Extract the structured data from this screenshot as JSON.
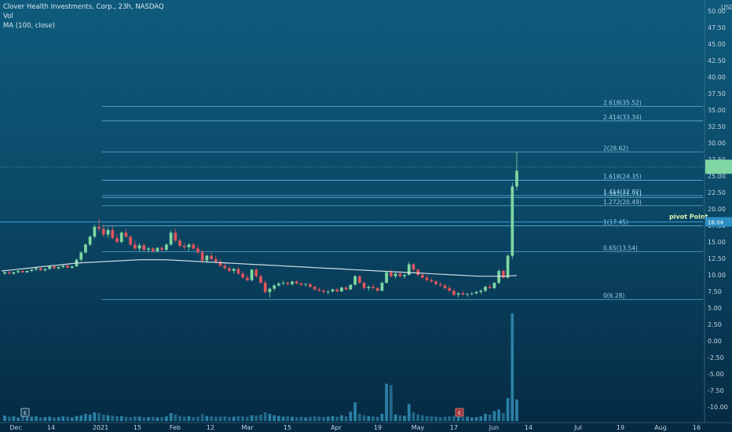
{
  "legend": {
    "title": "Clover Health Investments, Corp., 23h, NASDAQ",
    "vol": "Vol",
    "ma": "MA (100, close)"
  },
  "currency": "USD",
  "colors": {
    "up": "#7fd6a2",
    "down": "#e0545c",
    "ma": "#e6eef2",
    "fib": "#6cc4ee",
    "volume": "#2f89b0",
    "pivot_line": "#3aa8e0"
  },
  "chart_data": {
    "type": "candlestick",
    "title": "Clover Health Investments, Corp., 23h, NASDAQ",
    "y_axis": {
      "ticks": [
        "50.00",
        "47.50",
        "45.00",
        "42.50",
        "40.00",
        "37.50",
        "35.00",
        "32.50",
        "30.00",
        "27.50",
        "25.00",
        "22.50",
        "20.00",
        "17.50",
        "15.00",
        "12.50",
        "10.00",
        "7.50",
        "5.00",
        "2.50",
        "0.00",
        "-2.50",
        "-5.00",
        "-7.50",
        "-10.00"
      ],
      "ylim": [
        -12,
        52
      ]
    },
    "x_axis": {
      "ticks": [
        "Dec",
        "14",
        "2021",
        "15",
        "Feb",
        "12",
        "Mar",
        "15",
        "Apr",
        "19",
        "May",
        "17",
        "Jun",
        "14",
        "Jul",
        "19",
        "Aug",
        "16"
      ]
    },
    "fib_levels": [
      {
        "label": "2.618(35.52)",
        "value": 35.52
      },
      {
        "label": "2.414(33.34)",
        "value": 33.34
      },
      {
        "label": "2(28.62)",
        "value": 28.62
      },
      {
        "label": "1.618(24.35)",
        "value": 24.35
      },
      {
        "label": "1.414(22.02)",
        "value": 22.02
      },
      {
        "label": "1.382(21.71)",
        "value": 21.71
      },
      {
        "label": "1.272(20.49)",
        "value": 20.49
      },
      {
        "label": "1(17.45)",
        "value": 17.45
      },
      {
        "label": "0.65(13.54)",
        "value": 13.54
      },
      {
        "label": "0(6.28)",
        "value": 6.28
      }
    ],
    "pivot": {
      "label": "pivot Point",
      "value": 18.04,
      "value_label": "18.04"
    },
    "current_price": {
      "value": 25.8
    },
    "event_markers": [
      {
        "label": "E",
        "date_index": 0
      },
      {
        "label": "E",
        "date_index": 115
      }
    ],
    "candles": [
      [
        10.2,
        10.5,
        10.0,
        10.4
      ],
      [
        10.4,
        10.6,
        10.1,
        10.2
      ],
      [
        10.2,
        10.5,
        10.0,
        10.4
      ],
      [
        10.4,
        10.7,
        10.2,
        10.6
      ],
      [
        10.6,
        10.8,
        10.3,
        10.4
      ],
      [
        10.4,
        10.7,
        10.3,
        10.6
      ],
      [
        10.6,
        10.9,
        10.4,
        10.8
      ],
      [
        10.8,
        11.2,
        10.6,
        11.0
      ],
      [
        11.0,
        11.1,
        10.6,
        10.7
      ],
      [
        10.7,
        11.0,
        10.5,
        10.9
      ],
      [
        10.9,
        11.4,
        10.8,
        11.3
      ],
      [
        11.3,
        11.5,
        10.9,
        11.0
      ],
      [
        11.0,
        11.3,
        10.8,
        11.2
      ],
      [
        11.2,
        11.6,
        11.0,
        11.4
      ],
      [
        11.4,
        11.6,
        11.0,
        11.1
      ],
      [
        11.1,
        11.4,
        10.9,
        11.3
      ],
      [
        11.3,
        12.5,
        11.2,
        12.3
      ],
      [
        12.3,
        13.6,
        12.0,
        13.4
      ],
      [
        13.4,
        14.8,
        13.2,
        14.6
      ],
      [
        14.6,
        16.0,
        14.3,
        15.8
      ],
      [
        15.8,
        17.6,
        15.5,
        17.3
      ],
      [
        17.3,
        18.6,
        16.6,
        17.0
      ],
      [
        17.0,
        17.6,
        15.8,
        16.1
      ],
      [
        16.1,
        17.2,
        15.6,
        16.8
      ],
      [
        16.8,
        17.4,
        15.4,
        15.6
      ],
      [
        15.6,
        16.2,
        14.8,
        15.0
      ],
      [
        15.0,
        16.6,
        14.8,
        16.4
      ],
      [
        16.4,
        17.0,
        15.6,
        15.8
      ],
      [
        15.8,
        16.0,
        14.4,
        14.6
      ],
      [
        14.6,
        15.2,
        13.8,
        14.0
      ],
      [
        14.0,
        14.8,
        13.6,
        14.5
      ],
      [
        14.5,
        14.8,
        13.6,
        13.8
      ],
      [
        13.8,
        14.3,
        13.4,
        14.0
      ],
      [
        14.0,
        14.2,
        13.4,
        13.6
      ],
      [
        13.6,
        14.2,
        13.4,
        14.1
      ],
      [
        14.1,
        14.4,
        13.6,
        13.8
      ],
      [
        13.8,
        14.8,
        13.6,
        14.6
      ],
      [
        14.6,
        16.8,
        14.4,
        16.4
      ],
      [
        16.4,
        17.0,
        15.0,
        15.2
      ],
      [
        15.2,
        15.6,
        14.2,
        14.4
      ],
      [
        14.4,
        14.9,
        13.8,
        14.2
      ],
      [
        14.2,
        14.8,
        13.6,
        14.6
      ],
      [
        14.6,
        14.9,
        13.8,
        14.0
      ],
      [
        14.0,
        14.4,
        13.2,
        13.4
      ],
      [
        13.4,
        13.8,
        11.8,
        12.2
      ],
      [
        12.2,
        13.1,
        11.8,
        12.9
      ],
      [
        12.9,
        13.4,
        12.2,
        12.4
      ],
      [
        12.4,
        12.9,
        11.8,
        12.0
      ],
      [
        12.0,
        12.4,
        11.2,
        11.4
      ],
      [
        11.4,
        11.8,
        10.8,
        11.0
      ],
      [
        11.0,
        11.4,
        10.4,
        10.6
      ],
      [
        10.6,
        11.1,
        10.2,
        10.9
      ],
      [
        10.9,
        11.2,
        10.0,
        10.2
      ],
      [
        10.2,
        10.6,
        9.4,
        9.6
      ],
      [
        9.6,
        10.0,
        9.0,
        9.2
      ],
      [
        9.2,
        10.9,
        9.0,
        10.8
      ],
      [
        10.8,
        11.0,
        9.6,
        9.8
      ],
      [
        9.8,
        10.1,
        8.6,
        8.8
      ],
      [
        8.8,
        9.2,
        7.2,
        7.4
      ],
      [
        7.4,
        8.1,
        6.6,
        7.9
      ],
      [
        7.9,
        8.6,
        7.6,
        8.4
      ],
      [
        8.4,
        8.9,
        8.2,
        8.7
      ],
      [
        8.7,
        9.1,
        8.4,
        8.8
      ],
      [
        8.8,
        9.0,
        8.4,
        8.6
      ],
      [
        8.6,
        9.1,
        8.4,
        9.0
      ],
      [
        9.0,
        9.2,
        8.6,
        8.7
      ],
      [
        8.7,
        8.9,
        8.3,
        8.5
      ],
      [
        8.5,
        8.8,
        8.2,
        8.6
      ],
      [
        8.6,
        8.8,
        8.0,
        8.2
      ],
      [
        8.2,
        8.4,
        7.6,
        7.8
      ],
      [
        7.8,
        8.1,
        7.4,
        7.6
      ],
      [
        7.6,
        7.9,
        7.2,
        7.4
      ],
      [
        7.4,
        7.7,
        7.0,
        7.5
      ],
      [
        7.5,
        7.9,
        7.3,
        7.8
      ],
      [
        7.8,
        8.0,
        7.3,
        7.5
      ],
      [
        7.5,
        8.2,
        7.4,
        8.1
      ],
      [
        8.1,
        8.3,
        7.6,
        7.8
      ],
      [
        7.8,
        8.6,
        7.7,
        8.5
      ],
      [
        8.5,
        10.0,
        8.4,
        9.8
      ],
      [
        9.8,
        10.0,
        8.6,
        8.8
      ],
      [
        8.8,
        9.0,
        7.8,
        8.0
      ],
      [
        8.0,
        8.4,
        7.6,
        8.2
      ],
      [
        8.2,
        8.6,
        7.8,
        8.0
      ],
      [
        8.0,
        8.2,
        7.4,
        7.6
      ],
      [
        7.6,
        9.0,
        7.5,
        8.8
      ],
      [
        8.8,
        10.6,
        8.7,
        10.4
      ],
      [
        10.4,
        10.8,
        9.6,
        9.8
      ],
      [
        9.8,
        10.4,
        9.4,
        10.2
      ],
      [
        10.2,
        10.6,
        9.6,
        9.8
      ],
      [
        9.8,
        10.2,
        9.4,
        10.0
      ],
      [
        10.0,
        12.0,
        9.9,
        11.6
      ],
      [
        11.6,
        11.8,
        10.6,
        10.8
      ],
      [
        10.8,
        11.0,
        9.8,
        10.0
      ],
      [
        10.0,
        10.4,
        9.4,
        9.6
      ],
      [
        9.6,
        10.0,
        9.0,
        9.2
      ],
      [
        9.2,
        9.6,
        8.8,
        9.0
      ],
      [
        9.0,
        9.3,
        8.4,
        8.6
      ],
      [
        8.6,
        8.9,
        8.2,
        8.4
      ],
      [
        8.4,
        8.7,
        7.8,
        8.0
      ],
      [
        8.0,
        8.4,
        7.4,
        7.6
      ],
      [
        7.6,
        7.9,
        6.8,
        7.0
      ],
      [
        7.0,
        7.4,
        6.6,
        7.2
      ],
      [
        7.2,
        7.6,
        6.9,
        7.0
      ],
      [
        7.0,
        7.3,
        6.7,
        7.1
      ],
      [
        7.1,
        7.4,
        6.9,
        7.2
      ],
      [
        7.2,
        7.6,
        7.0,
        7.4
      ],
      [
        7.4,
        7.8,
        7.1,
        7.6
      ],
      [
        7.6,
        8.4,
        7.4,
        8.2
      ],
      [
        8.2,
        8.6,
        7.9,
        8.0
      ],
      [
        8.0,
        8.9,
        7.9,
        8.8
      ],
      [
        8.8,
        10.9,
        8.6,
        10.6
      ],
      [
        10.6,
        10.8,
        9.4,
        9.6
      ],
      [
        9.6,
        13.2,
        9.4,
        12.9
      ],
      [
        12.9,
        24.0,
        12.4,
        23.4
      ],
      [
        23.4,
        28.6,
        22.8,
        25.8
      ]
    ],
    "ma_100": [
      10.6,
      10.8,
      11.0,
      11.2,
      11.4,
      11.6,
      11.8,
      11.9,
      12.0,
      12.1,
      12.2,
      12.3,
      12.3,
      12.3,
      12.2,
      12.1,
      12.0,
      11.9,
      11.8,
      11.7,
      11.6,
      11.5,
      11.4,
      11.3,
      11.2,
      11.1,
      11.0,
      10.9,
      10.8,
      10.7,
      10.6,
      10.5,
      10.4,
      10.3,
      10.2,
      10.1,
      10.0,
      9.9,
      9.8,
      9.8,
      9.8,
      9.9
    ],
    "volume": [
      1.5,
      1.2,
      1.3,
      1.0,
      1.4,
      1.1,
      1.2,
      1.3,
      1.0,
      1.1,
      1.2,
      1.0,
      1.1,
      1.3,
      1.2,
      1.0,
      1.4,
      1.6,
      2.0,
      1.8,
      2.4,
      2.2,
      1.8,
      1.6,
      1.5,
      1.3,
      1.4,
      1.2,
      1.1,
      1.3,
      1.2,
      1.0,
      1.1,
      1.2,
      1.0,
      1.1,
      1.3,
      2.2,
      1.8,
      1.4,
      1.2,
      1.3,
      1.1,
      1.2,
      1.9,
      1.4,
      1.3,
      1.2,
      1.2,
      1.3,
      1.1,
      1.2,
      1.4,
      1.3,
      1.2,
      1.6,
      1.5,
      1.8,
      2.4,
      2.0,
      1.6,
      1.4,
      1.2,
      1.3,
      1.2,
      1.1,
      1.2,
      1.0,
      1.2,
      1.3,
      1.2,
      1.1,
      1.2,
      1.4,
      1.2,
      1.6,
      1.3,
      2.6,
      5.2,
      2.0,
      1.6,
      1.4,
      1.3,
      1.2,
      2.0,
      10.4,
      10.0,
      1.8,
      1.6,
      1.5,
      4.8,
      2.4,
      1.8,
      1.6,
      1.4,
      1.3,
      1.2,
      1.1,
      1.2,
      1.3,
      1.4,
      1.2,
      1.1,
      1.2,
      1.0,
      1.1,
      1.3,
      2.0,
      1.8,
      2.8,
      3.2,
      2.2,
      6.4,
      30.0,
      6.0
    ]
  }
}
